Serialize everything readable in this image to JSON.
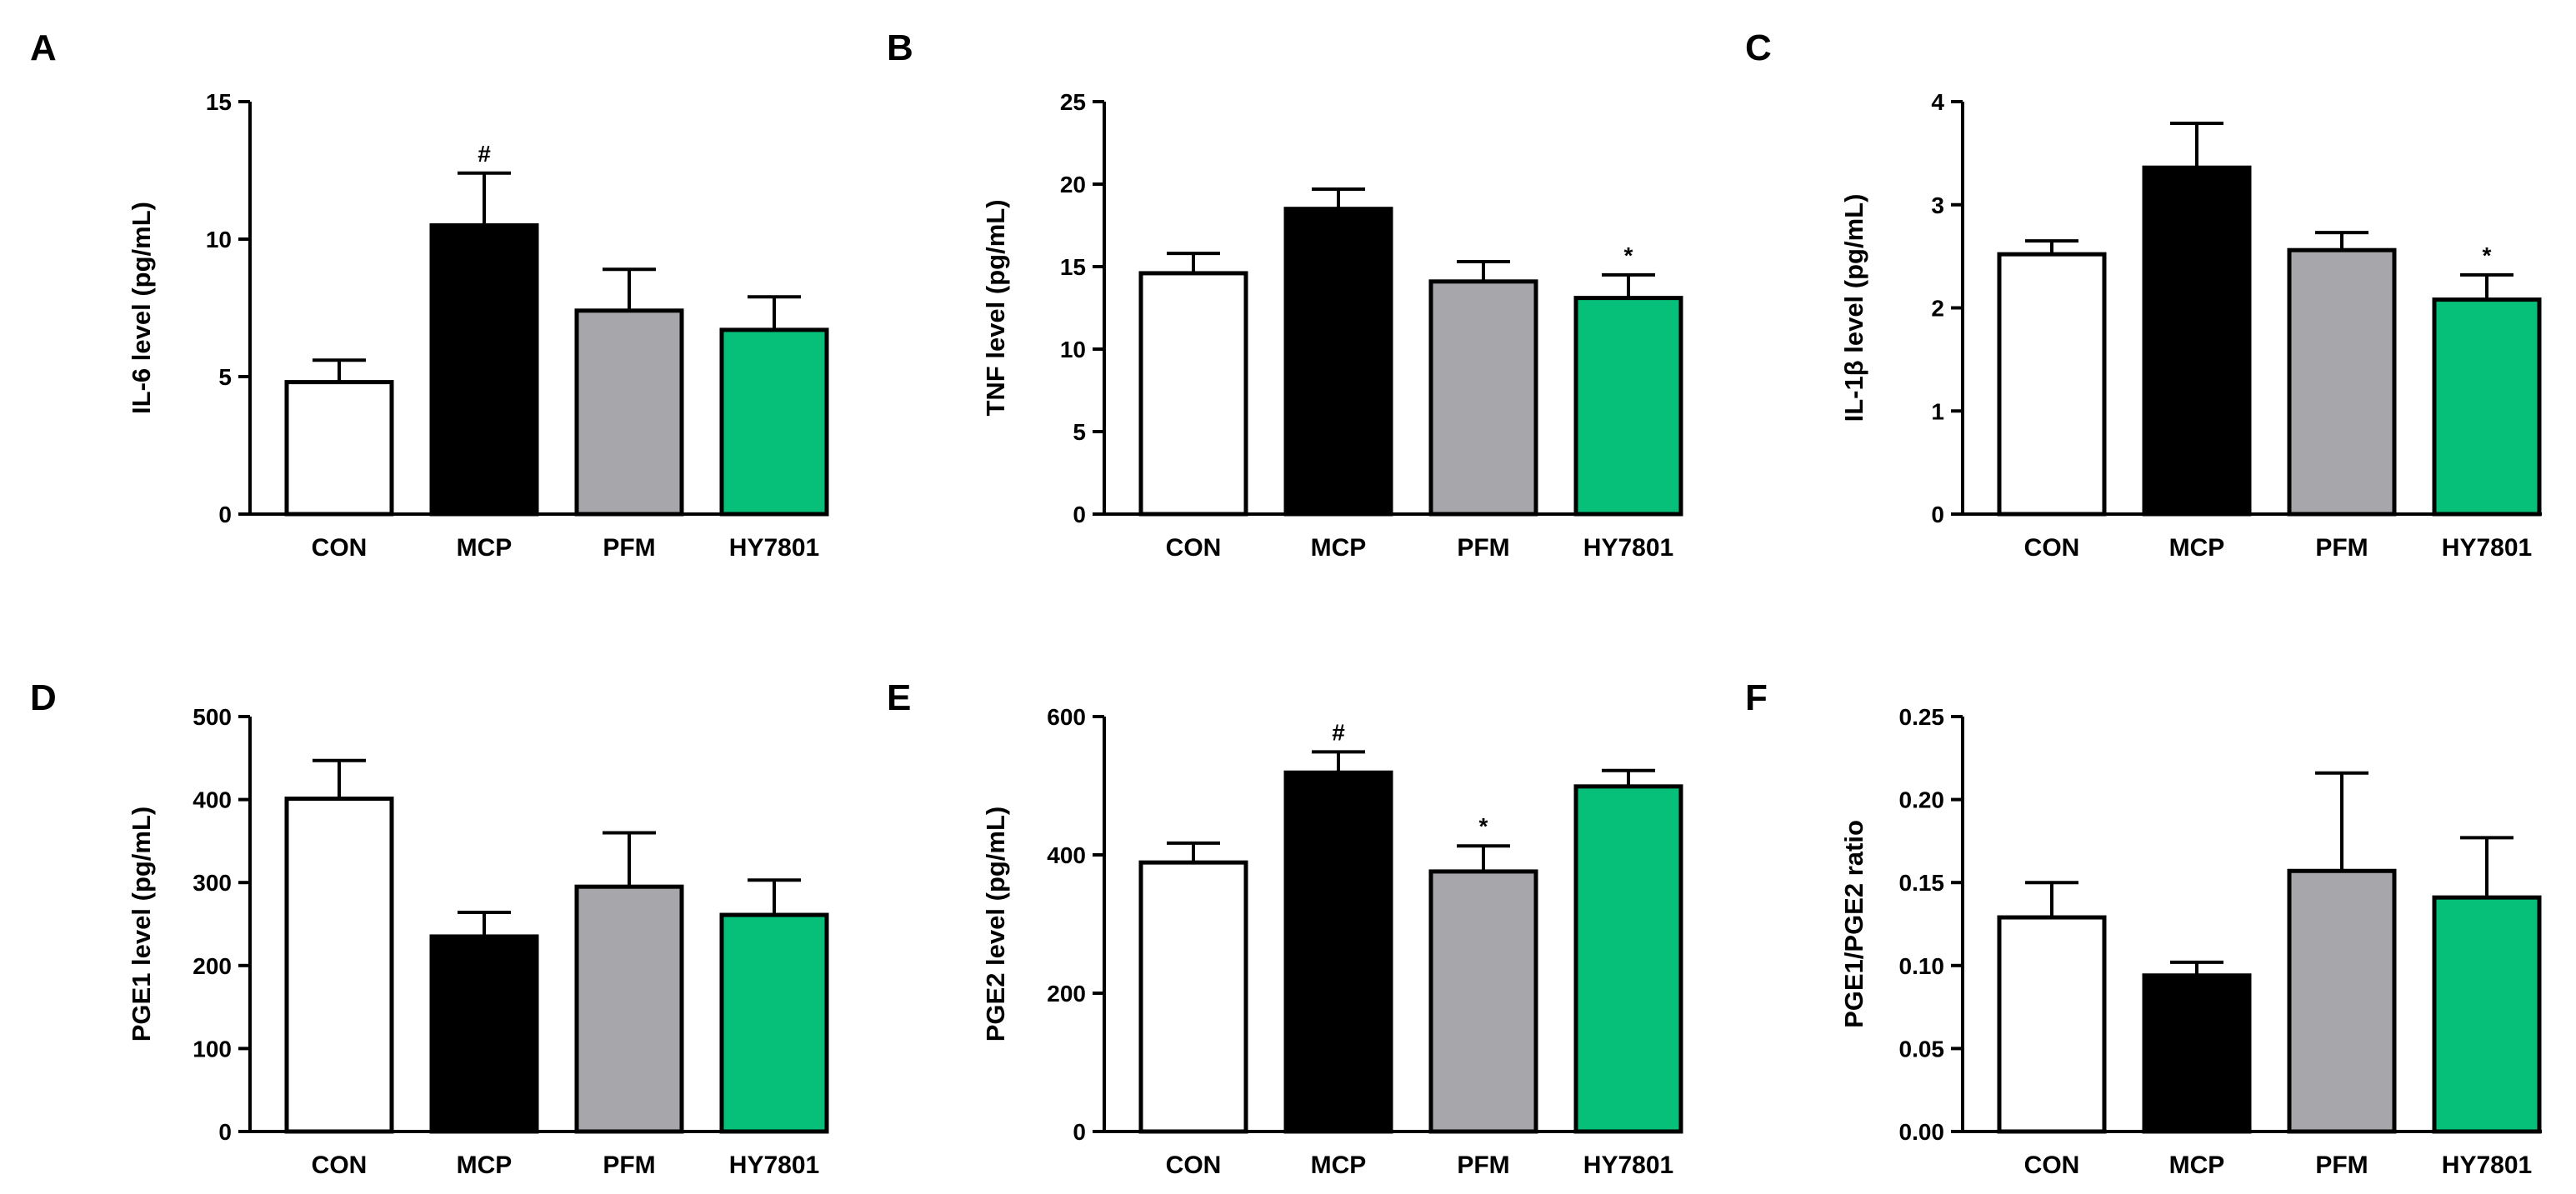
{
  "colors": {
    "CON": "#ffffff",
    "MCP": "#000000",
    "PFM": "#a7a6ab",
    "HY7801": "#06bf78",
    "axis": "#000000"
  },
  "chart_data": [
    {
      "type": "bar",
      "panel_label": "A",
      "ylabel": "IL-6 level (pg/mL)",
      "categories": [
        "CON",
        "MCP",
        "PFM",
        "HY7801"
      ],
      "values": [
        4.8,
        10.5,
        7.4,
        6.7
      ],
      "errors": [
        0.8,
        1.9,
        1.5,
        1.2
      ],
      "annotations": [
        "",
        "#",
        "",
        ""
      ],
      "ylim": [
        0,
        15
      ],
      "yticks": [
        0,
        5,
        10,
        15
      ],
      "ytick_labels": [
        "0",
        "5",
        "10",
        "15"
      ]
    },
    {
      "type": "bar",
      "panel_label": "B",
      "ylabel": "TNF level (pg/mL)",
      "categories": [
        "CON",
        "MCP",
        "PFM",
        "HY7801"
      ],
      "values": [
        14.6,
        18.5,
        14.1,
        13.1
      ],
      "errors": [
        1.2,
        1.2,
        1.2,
        1.4
      ],
      "annotations": [
        "",
        "",
        "",
        "*"
      ],
      "ylim": [
        0,
        25
      ],
      "yticks": [
        0,
        5,
        10,
        15,
        20,
        25
      ],
      "ytick_labels": [
        "0",
        "5",
        "10",
        "15",
        "20",
        "25"
      ]
    },
    {
      "type": "bar",
      "panel_label": "C",
      "ylabel": "IL-1β level (pg/mL)",
      "categories": [
        "CON",
        "MCP",
        "PFM",
        "HY7801"
      ],
      "values": [
        2.52,
        3.36,
        2.56,
        2.08
      ],
      "errors": [
        0.13,
        0.43,
        0.17,
        0.24
      ],
      "annotations": [
        "",
        "",
        "",
        "*"
      ],
      "ylim": [
        0,
        4
      ],
      "yticks": [
        0,
        1,
        2,
        3,
        4
      ],
      "ytick_labels": [
        "0",
        "1",
        "2",
        "3",
        "4"
      ]
    },
    {
      "type": "bar",
      "panel_label": "D",
      "ylabel": "PGE1 level (pg/mL)",
      "categories": [
        "CON",
        "MCP",
        "PFM",
        "HY7801"
      ],
      "values": [
        401,
        235,
        295,
        261
      ],
      "errors": [
        46,
        29,
        65,
        42
      ],
      "annotations": [
        "",
        "",
        "",
        ""
      ],
      "ylim": [
        0,
        500
      ],
      "yticks": [
        0,
        100,
        200,
        300,
        400,
        500
      ],
      "ytick_labels": [
        "0",
        "100",
        "200",
        "300",
        "400",
        "500"
      ]
    },
    {
      "type": "bar",
      "panel_label": "E",
      "ylabel": "PGE2 level (pg/mL)",
      "categories": [
        "CON",
        "MCP",
        "PFM",
        "HY7801"
      ],
      "values": [
        389,
        519,
        376,
        499
      ],
      "errors": [
        28,
        30,
        37,
        23
      ],
      "annotations": [
        "",
        "#",
        "*",
        ""
      ],
      "ylim": [
        0,
        600
      ],
      "yticks": [
        0,
        200,
        400,
        600
      ],
      "ytick_labels": [
        "0",
        "200",
        "400",
        "600"
      ]
    },
    {
      "type": "bar",
      "panel_label": "F",
      "ylabel": "PGE1/PGE2 ratio",
      "categories": [
        "CON",
        "MCP",
        "PFM",
        "HY7801"
      ],
      "values": [
        0.129,
        0.094,
        0.157,
        0.141
      ],
      "errors": [
        0.021,
        0.008,
        0.059,
        0.036
      ],
      "annotations": [
        "",
        "",
        "",
        ""
      ],
      "ylim": [
        0,
        0.25
      ],
      "yticks": [
        0,
        0.05,
        0.1,
        0.15,
        0.2,
        0.25
      ],
      "ytick_labels": [
        "0.00",
        "0.05",
        "0.10",
        "0.15",
        "0.20",
        "0.25"
      ]
    }
  ]
}
